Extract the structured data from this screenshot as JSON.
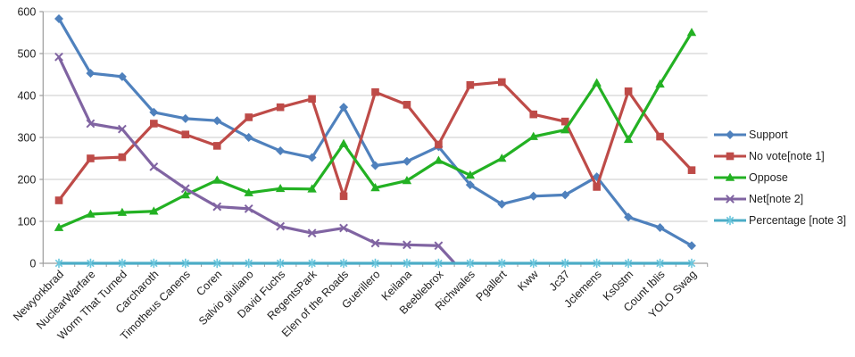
{
  "chart_data": {
    "type": "line",
    "title": "",
    "xlabel": "",
    "ylabel": "",
    "ylim": [
      0,
      600
    ],
    "ytick_step": 100,
    "yticks": [
      "0",
      "100",
      "200",
      "300",
      "400",
      "500",
      "600"
    ],
    "grid": true,
    "legend_position": "right",
    "axis_color": "#9c9c9c",
    "grid_color": "#c9c9c9",
    "label_color": "#1f1f1f",
    "categories": [
      "Newyorkbrad",
      "NuclearWarfare",
      "Worm That Turned",
      "Carcharoth",
      "Timotheus Canens",
      "Coren",
      "Salvio giuliano",
      "David Fuchs",
      "RegentsPark",
      "Elen of the Roads",
      "Guerillero",
      "Keilana",
      "Beeblebrox",
      "Richwales",
      "Pgallert",
      "Kww",
      "Jc37",
      "Jclemens",
      "Ks0stm",
      "Count Iblis",
      "YOLO Swag"
    ],
    "series": [
      {
        "name": "Support",
        "color": "#4f81bd",
        "marker": "diamond",
        "values": [
          583,
          453,
          445,
          360,
          345,
          340,
          300,
          268,
          252,
          372,
          233,
          243,
          278,
          187,
          141,
          160,
          163,
          206,
          110,
          85,
          42
        ]
      },
      {
        "name": "No vote[note 1]",
        "color": "#be4b48",
        "marker": "square",
        "values": [
          150,
          250,
          253,
          333,
          307,
          280,
          348,
          372,
          392,
          160,
          408,
          378,
          283,
          425,
          432,
          355,
          338,
          182,
          410,
          302,
          222
        ]
      },
      {
        "name": "Oppose",
        "color": "#23b123",
        "marker": "triangle",
        "values": [
          85,
          117,
          121,
          124,
          163,
          198,
          168,
          178,
          177,
          285,
          180,
          197,
          245,
          210,
          250,
          302,
          318,
          430,
          295,
          427,
          550
        ]
      },
      {
        "name": "Net[note 2]",
        "color": "#8064a2",
        "marker": "x",
        "values": [
          492,
          333,
          320,
          230,
          178,
          135,
          130,
          88,
          72,
          84,
          48,
          44,
          42,
          -40,
          null,
          null,
          null,
          null,
          null,
          null,
          null
        ]
      },
      {
        "name": "Percentage [note 3]",
        "color": "#4bacc6",
        "marker_color": "#6bc6dd",
        "marker": "asterisk",
        "values": [
          0,
          0,
          0,
          0,
          0,
          0,
          0,
          0,
          0,
          0,
          0,
          0,
          0,
          0,
          0,
          0,
          0,
          0,
          0,
          0,
          0
        ]
      }
    ]
  }
}
